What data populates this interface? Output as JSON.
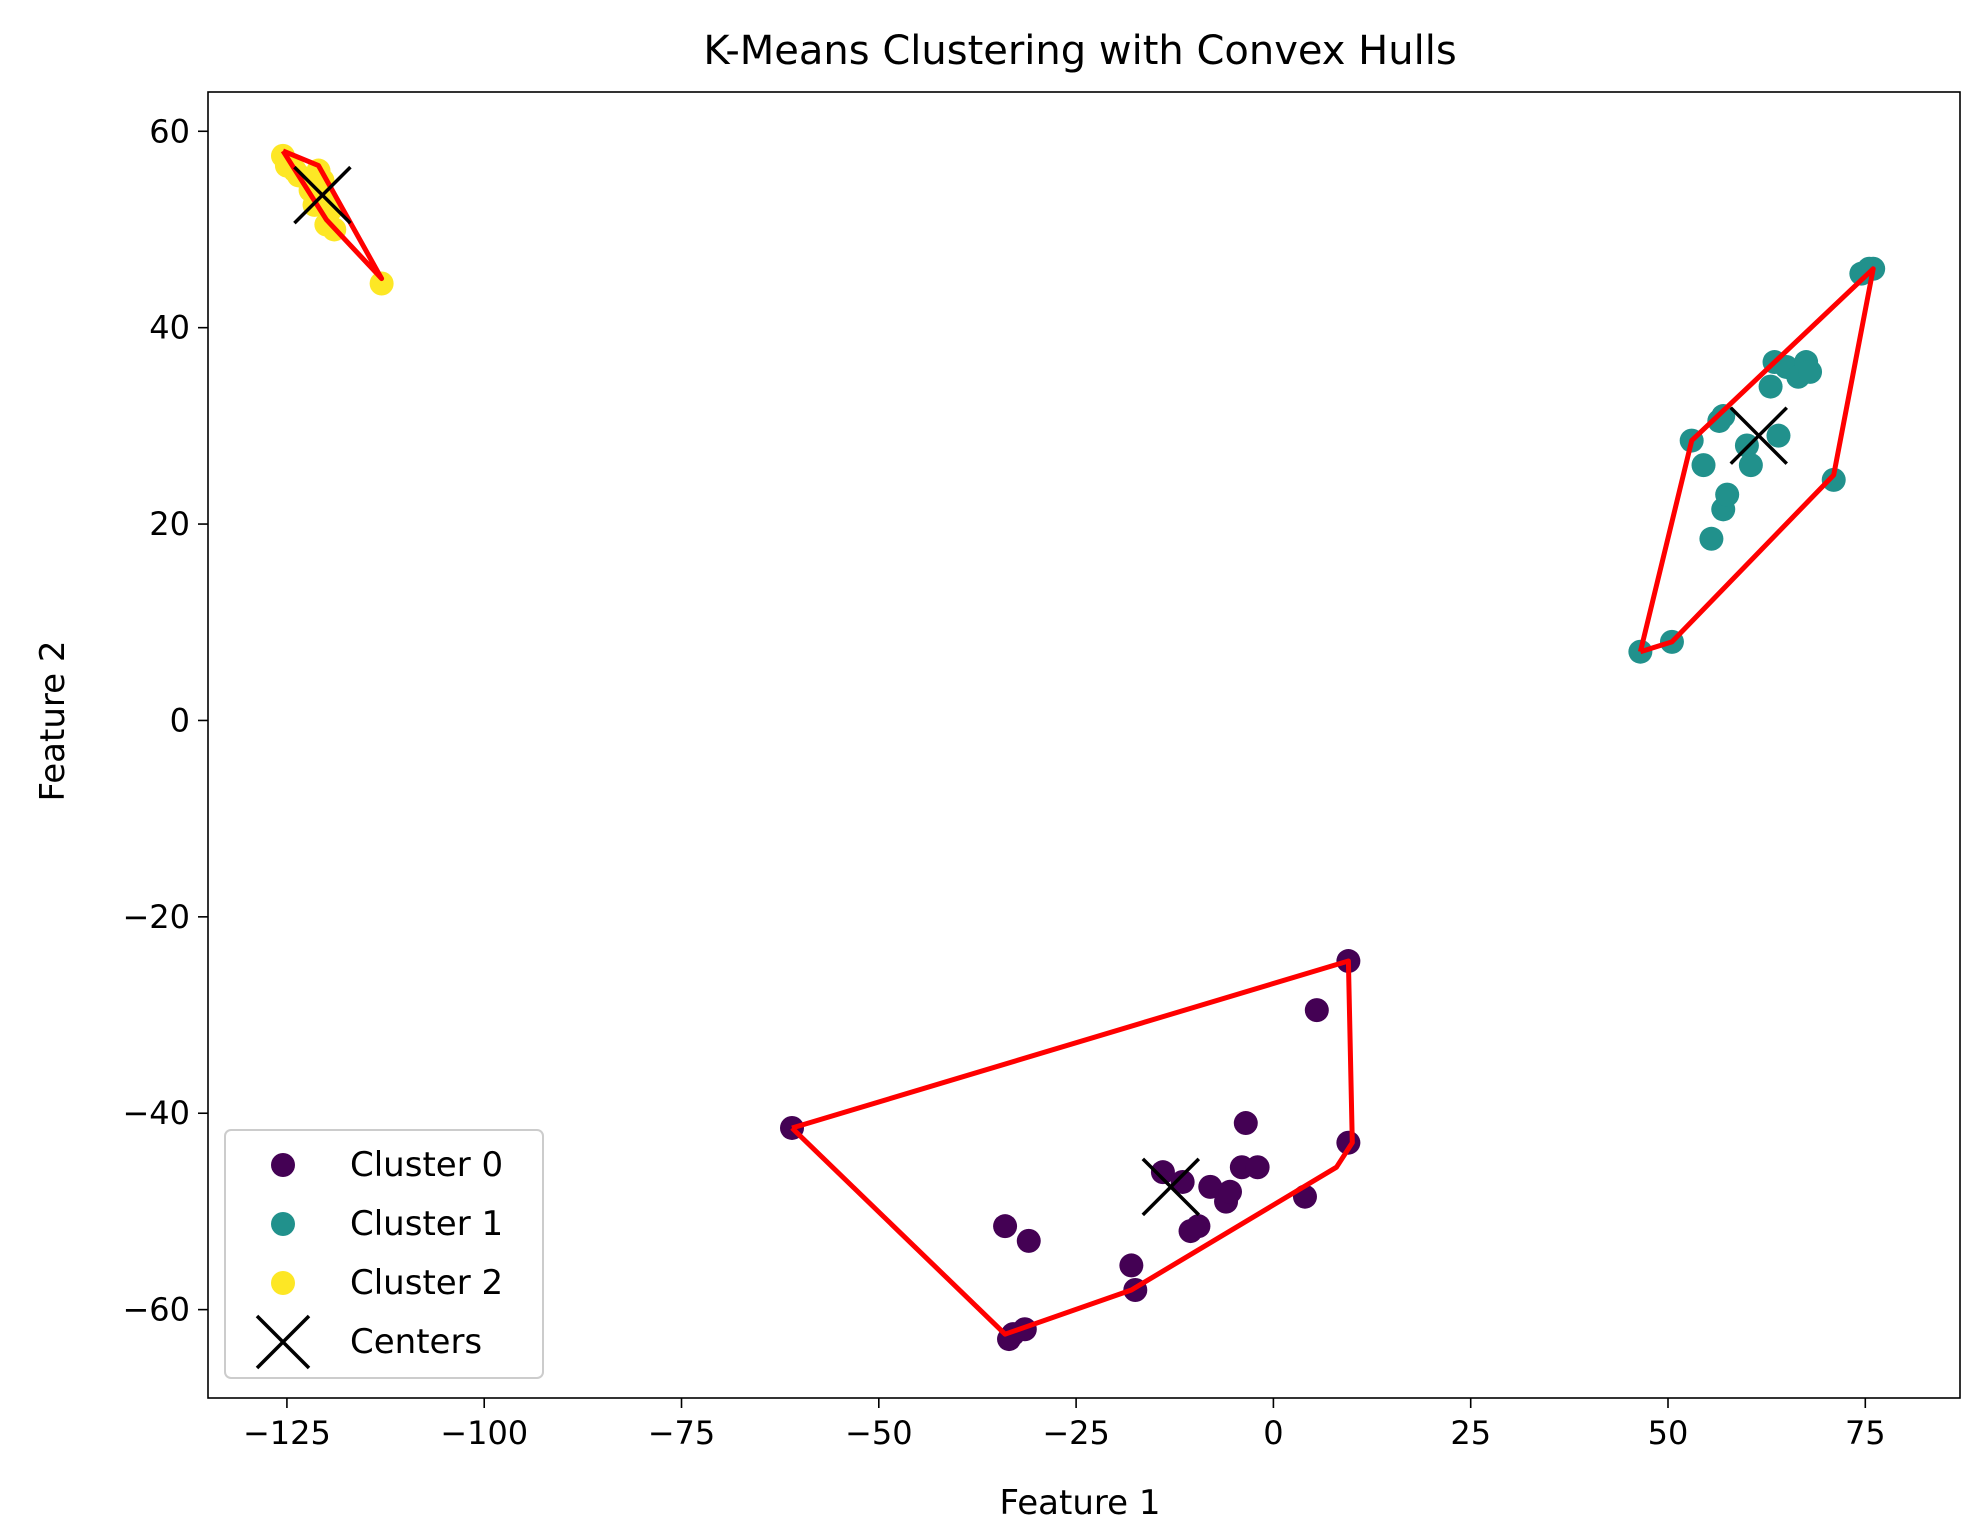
{
  "chart_data": {
    "type": "scatter",
    "title": "K-Means Clustering with Convex Hulls",
    "xlabel": "Feature 1",
    "ylabel": "Feature 2",
    "xlim": [
      -135,
      87
    ],
    "ylim": [
      -69,
      64
    ],
    "xticks": [
      -125,
      -100,
      -75,
      -50,
      -25,
      0,
      25,
      50,
      75
    ],
    "xtick_labels": [
      "−125",
      "−100",
      "−75",
      "−50",
      "−25",
      "0",
      "25",
      "50",
      "75"
    ],
    "yticks": [
      -60,
      -40,
      -20,
      0,
      20,
      40,
      60
    ],
    "ytick_labels": [
      "−60",
      "−40",
      "−20",
      "0",
      "20",
      "40",
      "60"
    ],
    "grid": false,
    "legend_position": "lower-left",
    "colors": {
      "cluster_0": "#440154",
      "cluster_1": "#21918c",
      "cluster_2": "#fde725",
      "hull": "#ff0000",
      "centers": "#000000"
    },
    "series": [
      {
        "name": "Cluster 0",
        "color": "#440154",
        "points": [
          [
            -61,
            -41.5
          ],
          [
            9.5,
            -24.5
          ],
          [
            9.5,
            -43
          ],
          [
            5.5,
            -29.5
          ],
          [
            4,
            -48.5
          ],
          [
            -34,
            -51.5
          ],
          [
            -31,
            -53
          ],
          [
            -33,
            -62.5
          ],
          [
            -33.5,
            -63
          ],
          [
            -31.5,
            -62
          ],
          [
            -18,
            -55.5
          ],
          [
            -17.5,
            -58
          ],
          [
            -14,
            -46
          ],
          [
            -11.5,
            -47
          ],
          [
            -10.5,
            -52
          ],
          [
            -9.5,
            -51.5
          ],
          [
            -8,
            -47.5
          ],
          [
            -6,
            -49
          ],
          [
            -5.5,
            -48
          ],
          [
            -4,
            -45.5
          ],
          [
            -3.5,
            -41
          ],
          [
            -2,
            -45.5
          ]
        ],
        "hull": [
          [
            -61,
            -41.5
          ],
          [
            9.5,
            -24.5
          ],
          [
            10,
            -43
          ],
          [
            8,
            -45.5
          ],
          [
            -18,
            -58
          ],
          [
            -34,
            -62.5
          ],
          [
            -61,
            -41.5
          ]
        ]
      },
      {
        "name": "Cluster 1",
        "color": "#21918c",
        "points": [
          [
            46.5,
            7
          ],
          [
            50.5,
            8
          ],
          [
            53,
            28.5
          ],
          [
            54.5,
            26
          ],
          [
            55.5,
            18.5
          ],
          [
            56.5,
            30.5
          ],
          [
            57,
            31
          ],
          [
            57,
            21.5
          ],
          [
            57.5,
            23
          ],
          [
            60,
            28
          ],
          [
            60.5,
            26
          ],
          [
            63,
            34
          ],
          [
            63.5,
            36.5
          ],
          [
            64,
            29
          ],
          [
            65,
            36
          ],
          [
            66.5,
            35
          ],
          [
            67.5,
            36.5
          ],
          [
            68,
            35.5
          ],
          [
            71,
            24.5
          ],
          [
            74.5,
            45.5
          ],
          [
            75.5,
            46
          ],
          [
            76,
            46
          ]
        ],
        "hull": [
          [
            46.5,
            7
          ],
          [
            50.5,
            8
          ],
          [
            71,
            25
          ],
          [
            76,
            46
          ],
          [
            53,
            28.5
          ],
          [
            46.5,
            7
          ]
        ]
      },
      {
        "name": "Cluster 2",
        "color": "#fde725",
        "points": [
          [
            -125.5,
            57.5
          ],
          [
            -125,
            56.5
          ],
          [
            -124,
            56
          ],
          [
            -123.5,
            55.5
          ],
          [
            -122,
            54
          ],
          [
            -121,
            56
          ],
          [
            -120.5,
            55
          ],
          [
            -120,
            53
          ],
          [
            -120,
            50.5
          ],
          [
            -119.5,
            52
          ],
          [
            -119,
            50
          ],
          [
            -121.5,
            52.5
          ],
          [
            -113,
            44.5
          ]
        ],
        "hull": [
          [
            -125.5,
            58
          ],
          [
            -121,
            56.5
          ],
          [
            -113,
            45
          ],
          [
            -120,
            51
          ],
          [
            -125.5,
            58
          ]
        ]
      }
    ],
    "centers": {
      "name": "Centers",
      "color": "#000000",
      "points": [
        [
          -13,
          -47.5
        ],
        [
          61.5,
          29
        ],
        [
          -120.5,
          53.5
        ]
      ]
    }
  }
}
